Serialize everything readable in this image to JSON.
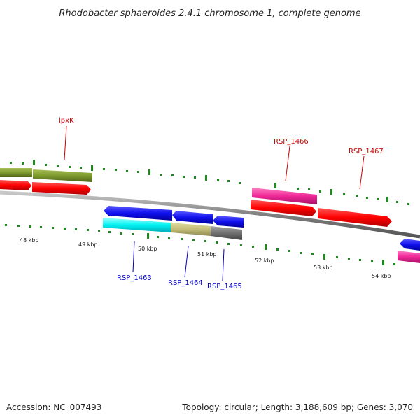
{
  "title": "Rhodobacter sphaeroides 2.4.1 chromosome 1, complete genome",
  "footer": {
    "accession": "Accession: NC_007493",
    "summary": "Topology: circular; Length: 3,188,609 bp; Genes: 3,070"
  },
  "ticks": [
    "48 kbp",
    "49 kbp",
    "50 kbp",
    "51 kbp",
    "52 kbp",
    "53 kbp",
    "54 kbp"
  ],
  "gene_labels": {
    "top": [
      "lpxK",
      "RSP_1466",
      "RSP_1467"
    ],
    "bottom": [
      "RSP_1463",
      "RSP_1464",
      "RSP_1465"
    ]
  },
  "colors": {
    "top_label": "#cc0000",
    "bottom_label": "#0000bb",
    "ruler": "#1f8a1f",
    "backbone": "#777777"
  }
}
